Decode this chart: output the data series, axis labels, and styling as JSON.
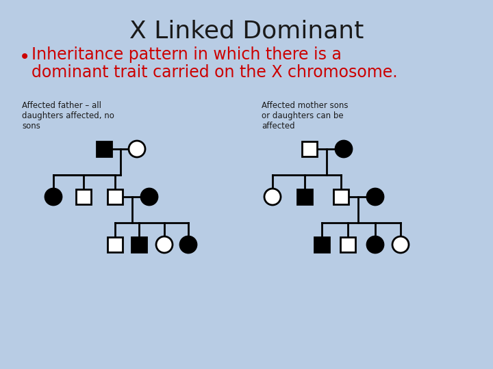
{
  "title": "X Linked Dominant",
  "bullet_text_line1": "Inheritance pattern in which there is a",
  "bullet_text_line2": "dominant trait carried on the X chromosome.",
  "label_left": "Affected father – all\ndaughters affected, no\nsons",
  "label_right": "Affected mother sons\nor daughters can be\naffected",
  "bg_color": "#b8cce4",
  "title_color": "#1a1a1a",
  "bullet_color": "#cc0000",
  "label_color": "#1a1a1a",
  "line_color": "#000000",
  "shape_fill_affected": "#000000",
  "shape_fill_unaffected": "#ffffff",
  "shape_edge_color": "#000000",
  "shape_linewidth": 2.0,
  "sq_size": 22,
  "circle_r": 12
}
